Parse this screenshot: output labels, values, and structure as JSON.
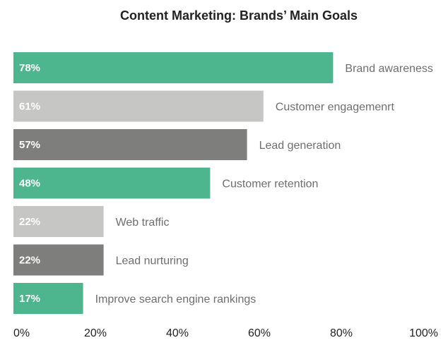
{
  "chart_data": {
    "type": "bar",
    "orientation": "horizontal",
    "title": "Content Marketing: Brands’ Main Goals",
    "xlabel": "",
    "ylabel": "",
    "xlim": [
      0,
      100
    ],
    "grid": false,
    "legend": "none",
    "x_ticks": [
      "0%",
      "20%",
      "40%",
      "60%",
      "80%",
      "100%"
    ],
    "categories": [
      "Brand awareness",
      "Customer engagemenrt",
      "Lead generation",
      "Customer retention",
      "Web traffic",
      "Lead nurturing",
      "Improve search engine rankings"
    ],
    "values": [
      78,
      61,
      57,
      48,
      22,
      22,
      17
    ],
    "value_labels": [
      "78%",
      "61%",
      "57%",
      "48%",
      "22%",
      "22%",
      "17%"
    ],
    "bar_colors": [
      "#4db68f",
      "#c6c6c4",
      "#7e7f7d",
      "#4db68f",
      "#c6c6c4",
      "#7e7f7d",
      "#4db68f"
    ]
  }
}
